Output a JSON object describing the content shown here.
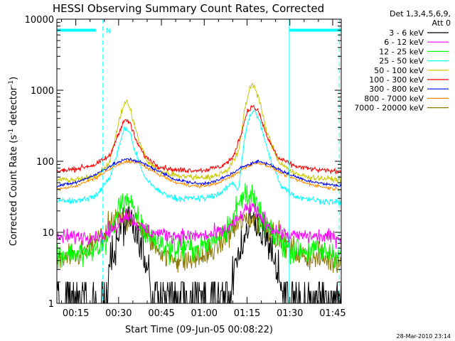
{
  "chart_data": {
    "type": "line",
    "title": "HESSI Observing Summary Count Rates, Corrected",
    "xlabel": "Start Time (09-Jun-05 00:08:22)",
    "ylabel_main": "Corrected Count Rate (s",
    "ylabel_sup": "-1",
    "ylabel_mid": " detector",
    "ylabel_sup2": "-1",
    "ylabel_end": ")",
    "yscale": "log",
    "ylim": [
      1,
      10000
    ],
    "xlim_minutes": [
      8.37,
      108.0
    ],
    "x_tick_labels": [
      "00:15",
      "00:30",
      "00:45",
      "01:00",
      "01:15",
      "01:30",
      "01:45"
    ],
    "x_tick_minutes": [
      15,
      30,
      45,
      60,
      75,
      90,
      105
    ],
    "y_tick_labels": [
      "1",
      "10",
      "100",
      "1000",
      "10000"
    ],
    "y_tick_values": [
      1,
      10,
      100,
      1000,
      10000
    ],
    "legend_header": [
      "Det 1,3,4,5,6,9,",
      "Att 0"
    ],
    "series": [
      {
        "name": "3 - 6 keV",
        "color": "#000000",
        "key": "s3_6"
      },
      {
        "name": "6 - 12 keV",
        "color": "#ff00ff",
        "key": "s6_12"
      },
      {
        "name": "12 - 25 keV",
        "color": "#00ff00",
        "key": "s12_25"
      },
      {
        "name": "25 - 50 keV",
        "color": "#00ffff",
        "key": "s25_50"
      },
      {
        "name": "50 - 100 keV",
        "color": "#c8c800",
        "key": "s50_100"
      },
      {
        "name": "100 - 300 keV",
        "color": "#ff0000",
        "key": "s100_300"
      },
      {
        "name": "300 - 800 keV",
        "color": "#0000ff",
        "key": "s300_800"
      },
      {
        "name": "800 - 7000 keV",
        "color": "#ff8c00",
        "key": "s800_7000"
      },
      {
        "name": "7000 - 20000 keV",
        "color": "#8b7500",
        "key": "s7000_20000"
      }
    ],
    "profiles": {
      "s3_6": [
        [
          8.4,
          1.5
        ],
        [
          20,
          1.5
        ],
        [
          25,
          2
        ],
        [
          28,
          5
        ],
        [
          31,
          12
        ],
        [
          33,
          14
        ],
        [
          35,
          11
        ],
        [
          38,
          6
        ],
        [
          41,
          3
        ],
        [
          44,
          1.5
        ],
        [
          50,
          1.2
        ],
        [
          60,
          1.2
        ],
        [
          68,
          2
        ],
        [
          72,
          5
        ],
        [
          75,
          12
        ],
        [
          77,
          15
        ],
        [
          79,
          12
        ],
        [
          82,
          8
        ],
        [
          85,
          4
        ],
        [
          88,
          2
        ],
        [
          92,
          1.5
        ],
        [
          100,
          1.3
        ],
        [
          108,
          1.3
        ]
      ],
      "s6_12": [
        [
          8.4,
          8.5
        ],
        [
          25,
          9
        ],
        [
          29,
          12
        ],
        [
          32,
          18
        ],
        [
          34,
          17
        ],
        [
          37,
          12
        ],
        [
          41,
          10
        ],
        [
          50,
          9
        ],
        [
          62,
          9
        ],
        [
          68,
          11
        ],
        [
          72,
          15
        ],
        [
          75,
          22
        ],
        [
          77,
          22
        ],
        [
          80,
          16
        ],
        [
          84,
          11
        ],
        [
          90,
          9
        ],
        [
          108,
          8.5
        ]
      ],
      "s12_25": [
        [
          8.4,
          5
        ],
        [
          20,
          5
        ],
        [
          25,
          7
        ],
        [
          28,
          12
        ],
        [
          31,
          28
        ],
        [
          33,
          30
        ],
        [
          35,
          20
        ],
        [
          38,
          12
        ],
        [
          42,
          8
        ],
        [
          48,
          6
        ],
        [
          58,
          6
        ],
        [
          64,
          8
        ],
        [
          69,
          14
        ],
        [
          73,
          28
        ],
        [
          75,
          40
        ],
        [
          77,
          30
        ],
        [
          80,
          15
        ],
        [
          84,
          9
        ],
        [
          90,
          6
        ],
        [
          108,
          5
        ]
      ],
      "s25_50": [
        [
          8.4,
          28
        ],
        [
          15,
          28
        ],
        [
          22,
          32
        ],
        [
          27,
          60
        ],
        [
          30,
          150
        ],
        [
          32,
          300
        ],
        [
          34,
          250
        ],
        [
          36,
          130
        ],
        [
          39,
          60
        ],
        [
          44,
          38
        ],
        [
          50,
          30
        ],
        [
          60,
          30
        ],
        [
          66,
          36
        ],
        [
          70,
          50
        ],
        [
          72,
          40
        ],
        [
          74,
          200
        ],
        [
          76,
          450
        ],
        [
          78,
          520
        ],
        [
          80,
          300
        ],
        [
          83,
          110
        ],
        [
          87,
          45
        ],
        [
          92,
          32
        ],
        [
          100,
          28
        ],
        [
          108,
          26
        ]
      ],
      "s50_100": [
        [
          8.4,
          55
        ],
        [
          15,
          55
        ],
        [
          22,
          60
        ],
        [
          27,
          100
        ],
        [
          30,
          350
        ],
        [
          32,
          650
        ],
        [
          33,
          700
        ],
        [
          35,
          400
        ],
        [
          37,
          200
        ],
        [
          40,
          100
        ],
        [
          45,
          70
        ],
        [
          55,
          60
        ],
        [
          63,
          60
        ],
        [
          68,
          75
        ],
        [
          72,
          130
        ],
        [
          74,
          500
        ],
        [
          76,
          1100
        ],
        [
          77,
          1250
        ],
        [
          79,
          800
        ],
        [
          82,
          250
        ],
        [
          86,
          100
        ],
        [
          92,
          65
        ],
        [
          100,
          58
        ],
        [
          108,
          55
        ]
      ],
      "s100_300": [
        [
          8.4,
          72
        ],
        [
          15,
          78
        ],
        [
          22,
          90
        ],
        [
          27,
          120
        ],
        [
          30,
          250
        ],
        [
          32,
          380
        ],
        [
          34,
          350
        ],
        [
          36,
          200
        ],
        [
          39,
          120
        ],
        [
          44,
          85
        ],
        [
          50,
          75
        ],
        [
          60,
          75
        ],
        [
          66,
          85
        ],
        [
          70,
          110
        ],
        [
          73,
          250
        ],
        [
          75,
          500
        ],
        [
          77,
          600
        ],
        [
          79,
          500
        ],
        [
          82,
          220
        ],
        [
          86,
          110
        ],
        [
          92,
          85
        ],
        [
          100,
          75
        ],
        [
          108,
          72
        ]
      ],
      "s300_800": [
        [
          8.4,
          45
        ],
        [
          15,
          50
        ],
        [
          22,
          65
        ],
        [
          28,
          90
        ],
        [
          33,
          108
        ],
        [
          37,
          100
        ],
        [
          42,
          80
        ],
        [
          50,
          55
        ],
        [
          58,
          48
        ],
        [
          64,
          52
        ],
        [
          70,
          68
        ],
        [
          75,
          90
        ],
        [
          79,
          100
        ],
        [
          83,
          90
        ],
        [
          88,
          70
        ],
        [
          95,
          55
        ],
        [
          102,
          48
        ],
        [
          108,
          45
        ]
      ],
      "s800_7000": [
        [
          8.4,
          40
        ],
        [
          15,
          45
        ],
        [
          22,
          58
        ],
        [
          28,
          82
        ],
        [
          33,
          100
        ],
        [
          37,
          95
        ],
        [
          42,
          72
        ],
        [
          50,
          50
        ],
        [
          58,
          44
        ],
        [
          64,
          48
        ],
        [
          70,
          62
        ],
        [
          75,
          85
        ],
        [
          79,
          95
        ],
        [
          83,
          85
        ],
        [
          88,
          65
        ],
        [
          95,
          50
        ],
        [
          102,
          43
        ],
        [
          108,
          40
        ]
      ],
      "s7000_20000": [
        [
          8.4,
          4
        ],
        [
          15,
          4.5
        ],
        [
          20,
          6
        ],
        [
          25,
          10
        ],
        [
          30,
          15
        ],
        [
          34,
          16
        ],
        [
          38,
          12
        ],
        [
          42,
          7
        ],
        [
          47,
          4.5
        ],
        [
          55,
          4
        ],
        [
          62,
          5
        ],
        [
          67,
          8
        ],
        [
          72,
          13
        ],
        [
          77,
          16
        ],
        [
          81,
          14
        ],
        [
          85,
          9
        ],
        [
          90,
          6
        ],
        [
          95,
          4.5
        ],
        [
          108,
          4
        ]
      ]
    },
    "noise": {
      "s3_6": 0.35,
      "s6_12": 0.12,
      "s12_25": 0.22,
      "s25_50": 0.05,
      "s50_100": 0.05,
      "s100_300": 0.04,
      "s300_800": 0.025,
      "s800_7000": 0.025,
      "s7000_20000": 0.2
    },
    "night_intervals_minutes": [
      [
        8.37,
        24.5
      ],
      [
        89.8,
        108.0
      ]
    ],
    "night_level": 7000,
    "night_color": "#00ffff",
    "saa_marker": "N",
    "cyan_solid_verticals_minutes": [
      8.37,
      89.8
    ],
    "cyan_dashed_verticals_minutes": [
      24.5,
      107.3
    ],
    "legend_placement": "right"
  },
  "footer": {
    "date_label": "28-Mar-2010 23:14"
  }
}
